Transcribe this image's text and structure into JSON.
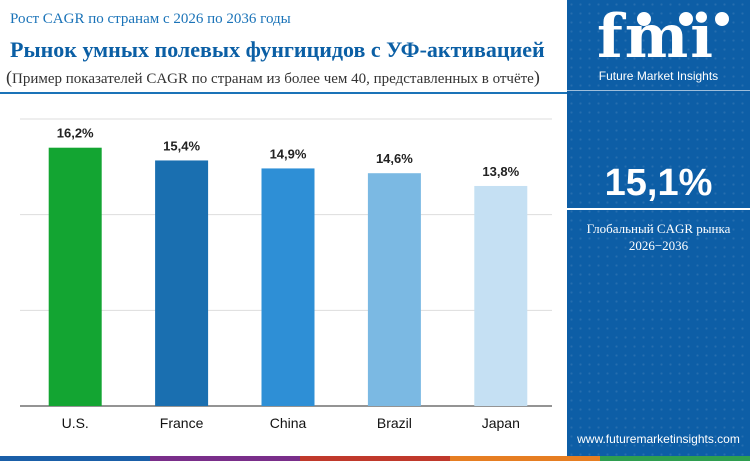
{
  "header": {
    "subtitle": "Рост CAGR по странам с 2026 по 2036 годы",
    "title": "Рынок умных полевых фунгицидов с УФ-активацией",
    "note": "Пример показателей CAGR по странам из более чем 40, представленных в отчёте"
  },
  "sidebar": {
    "logo_text": "fmi",
    "logo_caption": "Future Market Insights",
    "kpi_value": "15,1%",
    "kpi_label": "Глобальный CAGR рынка",
    "kpi_years": "2026−2036",
    "website": "www.futuremarketinsights.com"
  },
  "colors": {
    "brand_blue": "#0d5ea6",
    "bottom_stripe": [
      "#1a5fa8",
      "#7a2e8a",
      "#c0392b",
      "#e67e22",
      "#2e9e4f"
    ]
  },
  "chart_data": {
    "type": "bar",
    "categories": [
      "U.S.",
      "France",
      "China",
      "Brazil",
      "Japan"
    ],
    "values": [
      16.2,
      15.4,
      14.9,
      14.6,
      13.8
    ],
    "value_labels": [
      "16,2%",
      "15,4%",
      "14,9%",
      "14,6%",
      "13,8%"
    ],
    "bar_colors": [
      "#13a532",
      "#1a6fb0",
      "#2e8fd6",
      "#7bb9e3",
      "#c5e0f3"
    ],
    "ylim": [
      0,
      18
    ],
    "grid": true,
    "xlabel": "",
    "ylabel": ""
  }
}
